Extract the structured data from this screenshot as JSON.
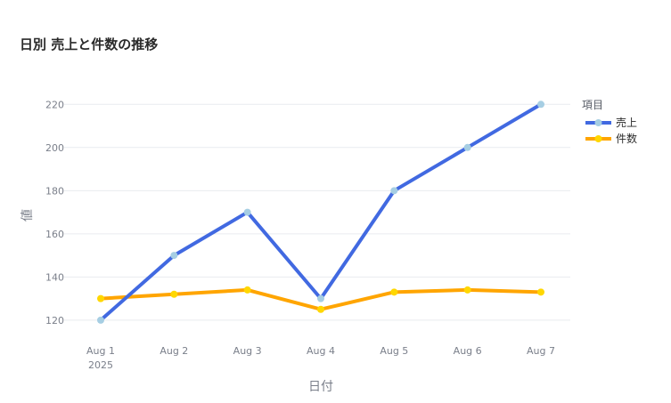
{
  "chart_data": {
    "type": "line",
    "title": "日別 売上と件数の推移",
    "xlabel": "日付",
    "ylabel": "値",
    "categories": [
      "Aug 1",
      "Aug 2",
      "Aug 3",
      "Aug 4",
      "Aug 5",
      "Aug 6",
      "Aug 7"
    ],
    "x_year_label": "2025",
    "yticks": [
      120,
      140,
      160,
      180,
      200,
      220
    ],
    "ylim": [
      115,
      223
    ],
    "grid": true,
    "legend": {
      "title": "項目",
      "placement": "top-right"
    },
    "series": [
      {
        "name": "売上",
        "values": [
          120,
          150,
          170,
          130,
          180,
          200,
          220
        ],
        "color": "#4169e1",
        "marker_color": "#a6cee3"
      },
      {
        "name": "件数",
        "values": [
          130,
          132,
          134,
          125,
          133,
          134,
          133
        ],
        "color": "#ffa500",
        "marker_color": "#ffd700"
      }
    ]
  }
}
